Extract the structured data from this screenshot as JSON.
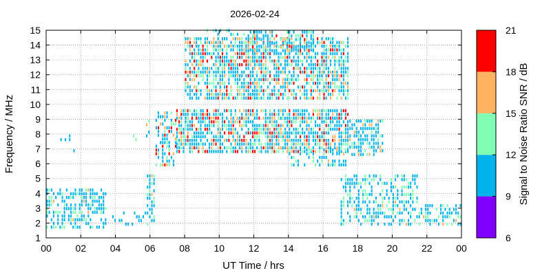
{
  "chart_data": {
    "type": "heatmap",
    "title": "2026-02-24",
    "xlabel": "UT Time / hrs",
    "ylabel": "Frequency / MHz",
    "xlim": [
      0,
      24
    ],
    "ylim": [
      1,
      15
    ],
    "x_tick_labels": [
      "00",
      "02",
      "04",
      "06",
      "08",
      "10",
      "12",
      "14",
      "16",
      "18",
      "20",
      "22",
      "00"
    ],
    "y_tick_labels": [
      "1",
      "2",
      "3",
      "4",
      "5",
      "6",
      "7",
      "8",
      "9",
      "10",
      "11",
      "12",
      "13",
      "14",
      "15"
    ],
    "grid": true,
    "colorbar": {
      "label": "Signal to Noise Ratio SNR / dB",
      "range": [
        6,
        21
      ],
      "tick_labels": [
        "6",
        "9",
        "12",
        "15",
        "18",
        "21"
      ],
      "bands": [
        {
          "from": 6,
          "to": 9,
          "color": "#7f00ff"
        },
        {
          "from": 9,
          "to": 12,
          "color": "#00b4eb"
        },
        {
          "from": 12,
          "to": 15,
          "color": "#80ffb4"
        },
        {
          "from": 15,
          "to": 18,
          "color": "#ffb360"
        },
        {
          "from": 18,
          "to": 21,
          "color": "#ff0000"
        }
      ]
    },
    "regions": [
      {
        "x": [
          0.0,
          3.5
        ],
        "y": [
          1.6,
          4.2
        ],
        "density": 0.5,
        "snr": [
          9,
          16
        ]
      },
      {
        "x": [
          3.8,
          5.8
        ],
        "y": [
          1.8,
          2.6
        ],
        "density": 0.25,
        "snr": [
          9,
          12
        ]
      },
      {
        "x": [
          5.8,
          6.3
        ],
        "y": [
          1.8,
          5.2
        ],
        "density": 0.45,
        "snr": [
          9,
          16
        ]
      },
      {
        "x": [
          6.3,
          7.5
        ],
        "y": [
          5.8,
          9.5
        ],
        "density": 0.45,
        "snr": [
          9,
          21
        ]
      },
      {
        "x": [
          7.5,
          17.5
        ],
        "y": [
          6.7,
          9.6
        ],
        "density": 0.72,
        "snr": [
          9,
          21
        ]
      },
      {
        "x": [
          8.0,
          17.5
        ],
        "y": [
          10.3,
          14.5
        ],
        "density": 0.7,
        "snr": [
          9,
          21
        ]
      },
      {
        "x": [
          11.5,
          15.5
        ],
        "y": [
          13.5,
          15.0
        ],
        "density": 0.5,
        "snr": [
          9,
          21
        ]
      },
      {
        "x": [
          14.0,
          17.5
        ],
        "y": [
          5.8,
          7.0
        ],
        "density": 0.4,
        "snr": [
          9,
          16
        ]
      },
      {
        "x": [
          17.5,
          19.5
        ],
        "y": [
          6.5,
          8.8
        ],
        "density": 0.6,
        "snr": [
          9,
          18
        ]
      },
      {
        "x": [
          17.0,
          21.5
        ],
        "y": [
          1.8,
          5.2
        ],
        "density": 0.45,
        "snr": [
          9,
          16
        ]
      },
      {
        "x": [
          21.5,
          24.0
        ],
        "y": [
          1.8,
          3.2
        ],
        "density": 0.5,
        "snr": [
          9,
          16
        ]
      },
      {
        "x": [
          9.0,
          11.5
        ],
        "y": [
          14.6,
          15.0
        ],
        "density": 0.3,
        "snr": [
          9,
          15
        ]
      },
      {
        "x": [
          5.0,
          6.0
        ],
        "y": [
          7.5,
          10.0
        ],
        "density": 0.12,
        "snr": [
          9,
          18
        ]
      },
      {
        "x": [
          0.8,
          1.6
        ],
        "y": [
          6.5,
          8.0
        ],
        "density": 0.1,
        "snr": [
          9,
          12
        ]
      }
    ]
  }
}
